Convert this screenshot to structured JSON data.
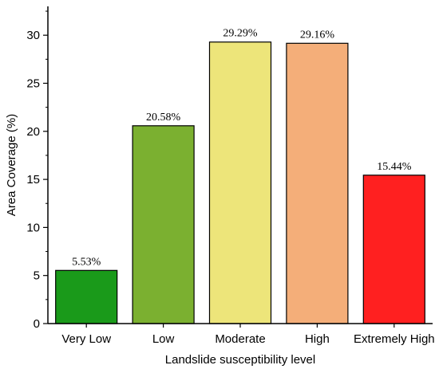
{
  "chart_data": {
    "type": "bar",
    "title": "",
    "xlabel": "Landslide susceptibility level",
    "ylabel": "Area Coverage (%)",
    "categories": [
      "Very Low",
      "Low",
      "Moderate",
      "High",
      "Extremely High"
    ],
    "values": [
      5.53,
      20.58,
      29.29,
      29.16,
      15.44
    ],
    "data_labels": [
      "5.53%",
      "20.58%",
      "29.29%",
      "29.16%",
      "15.44%"
    ],
    "colors": [
      "#1a9a1a",
      "#7bb030",
      "#ede57a",
      "#f4ae79",
      "#ff2020"
    ],
    "bar_outline": "#000000",
    "ylim": [
      0,
      33
    ],
    "yticks": [
      0,
      5,
      10,
      15,
      20,
      25,
      30
    ],
    "ytick_labels": [
      "0",
      "5",
      "10",
      "15",
      "20",
      "25",
      "30"
    ],
    "grid": false,
    "legend": "none"
  }
}
